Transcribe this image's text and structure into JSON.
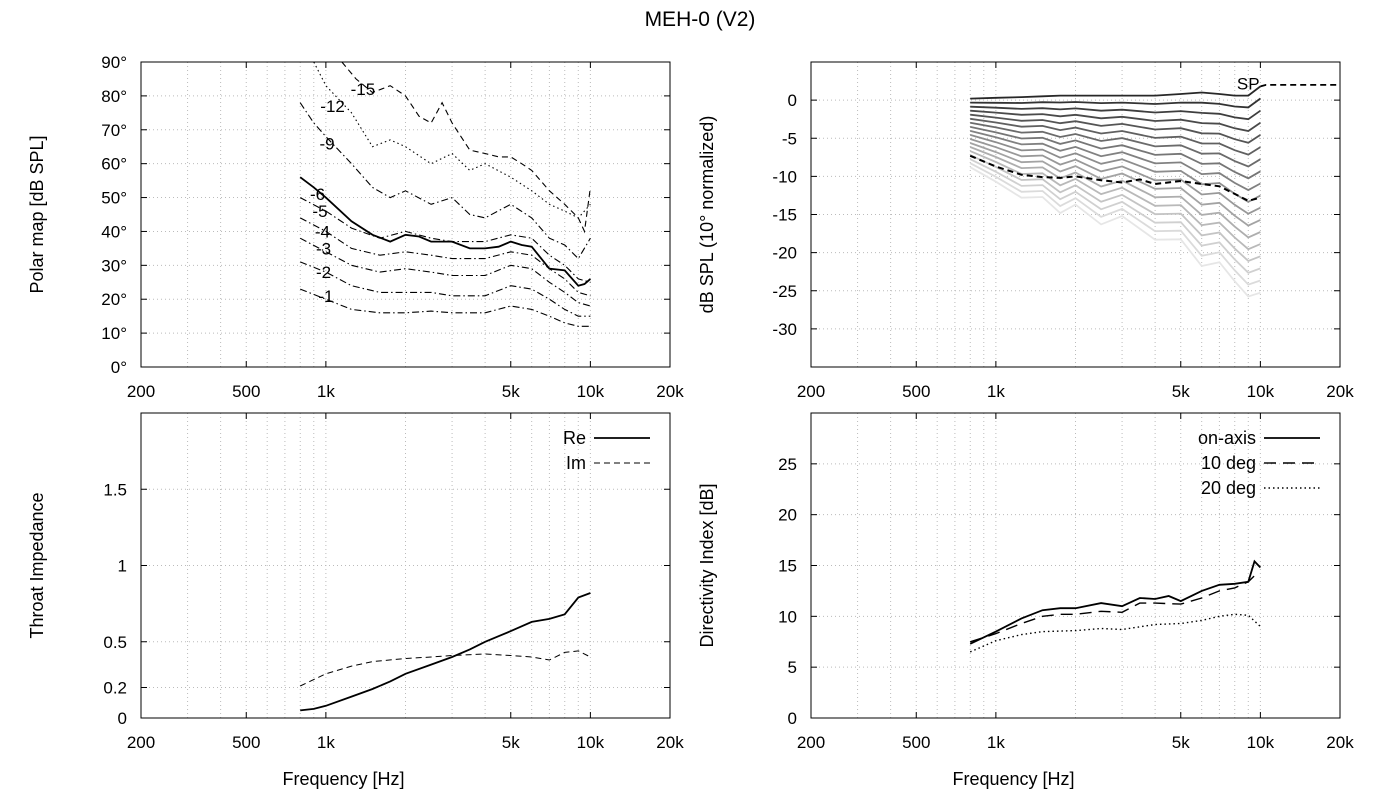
{
  "figure_title": "MEH-0 (V2)",
  "colors": {
    "grid": "#bbbbbb",
    "frame": "#000000",
    "line": "#000000"
  },
  "chart_data": [
    {
      "id": "polar",
      "type": "contour",
      "title": "",
      "xlabel": "",
      "ylabel": "Polar map [dB SPL]",
      "xscale": "log",
      "xlim": [
        200,
        20000
      ],
      "ylim": [
        0,
        90
      ],
      "xticks": [
        {
          "v": 200,
          "label": "200"
        },
        {
          "v": 500,
          "label": "500"
        },
        {
          "v": 1000,
          "label": "1k"
        },
        {
          "v": 5000,
          "label": "5k"
        },
        {
          "v": 10000,
          "label": "10k"
        },
        {
          "v": 20000,
          "label": "20k"
        }
      ],
      "yticks": [
        {
          "v": 0,
          "label": "0°"
        },
        {
          "v": 10,
          "label": "10°"
        },
        {
          "v": 20,
          "label": "20°"
        },
        {
          "v": 30,
          "label": "30°"
        },
        {
          "v": 40,
          "label": "40°"
        },
        {
          "v": 50,
          "label": "50°"
        },
        {
          "v": 60,
          "label": "60°"
        },
        {
          "v": 70,
          "label": "70°"
        },
        {
          "v": 80,
          "label": "80°"
        },
        {
          "v": 90,
          "label": "90°"
        }
      ],
      "grid": true,
      "series": [
        {
          "name": "-1",
          "dash": "dashdot",
          "width": 1.1,
          "label_at": [
            1000,
            21
          ],
          "x": [
            800,
            1000,
            1250,
            1600,
            2000,
            2500,
            3000,
            4000,
            5000,
            6000,
            7000,
            8000,
            9000,
            10000
          ],
          "y": [
            23,
            20,
            17,
            16,
            16,
            16.5,
            16,
            16,
            18,
            17,
            15,
            13,
            12,
            12
          ]
        },
        {
          "name": "-2",
          "dash": "dashdot",
          "width": 1.1,
          "label_at": [
            980,
            28
          ],
          "x": [
            800,
            1000,
            1250,
            1600,
            2000,
            2500,
            3000,
            4000,
            5000,
            6000,
            7000,
            8000,
            9000,
            10000
          ],
          "y": [
            31,
            28,
            24,
            22,
            22,
            22,
            21,
            21,
            24,
            23,
            20,
            17,
            15,
            15
          ]
        },
        {
          "name": "-3",
          "dash": "dashdot",
          "width": 1.1,
          "label_at": [
            980,
            35
          ],
          "x": [
            800,
            1000,
            1250,
            1600,
            2000,
            2500,
            3000,
            4000,
            5000,
            6000,
            7000,
            8000,
            9000,
            10000
          ],
          "y": [
            38,
            34,
            30,
            28,
            29,
            28,
            27,
            27,
            30,
            29,
            25,
            22,
            19,
            18
          ]
        },
        {
          "name": "-4",
          "dash": "dashdot",
          "width": 1.1,
          "label_at": [
            970,
            40
          ],
          "x": [
            800,
            1000,
            1250,
            1600,
            2000,
            2500,
            3000,
            4000,
            5000,
            6000,
            7000,
            8000,
            9000,
            10000
          ],
          "y": [
            44,
            40,
            35,
            33,
            34,
            33,
            32,
            32,
            34,
            33,
            29,
            26,
            22,
            21
          ]
        },
        {
          "name": "-5",
          "dash": "dashdot",
          "width": 1.1,
          "label_at": [
            950,
            46
          ],
          "x": [
            800,
            1000,
            1250,
            1600,
            2000,
            2500,
            3000,
            4000,
            5000,
            6000,
            7000,
            8000,
            9000,
            10000
          ],
          "y": [
            50,
            46,
            41,
            38,
            40,
            38,
            37,
            37,
            39,
            38,
            33,
            30,
            26,
            25
          ]
        },
        {
          "name": "-6",
          "dash": "solid",
          "width": 1.8,
          "label_at": [
            930,
            51
          ],
          "x": [
            800,
            900,
            1000,
            1250,
            1500,
            1750,
            2000,
            2250,
            2500,
            3000,
            3500,
            4000,
            4500,
            5000,
            5500,
            6000,
            7000,
            8000,
            9000,
            9500,
            10000
          ],
          "y": [
            56,
            53,
            50,
            43,
            39,
            37,
            39,
            38.5,
            37,
            37,
            35,
            35,
            35.5,
            37,
            36,
            35.5,
            29,
            28.5,
            24,
            24.5,
            26
          ]
        },
        {
          "name": "-9",
          "dash": "dashdot",
          "width": 1.1,
          "label_at": [
            1010,
            66
          ],
          "x": [
            800,
            900,
            1000,
            1250,
            1500,
            1750,
            2000,
            2500,
            3000,
            3500,
            4000,
            5000,
            6000,
            7000,
            8000,
            9000,
            10000
          ],
          "y": [
            78,
            72,
            68,
            60,
            53,
            50,
            52,
            48,
            50,
            45,
            44,
            48,
            44,
            38,
            36,
            32,
            38
          ]
        },
        {
          "name": "-12",
          "dash": "dotted",
          "width": 1.1,
          "label_at": [
            1060,
            77
          ],
          "x": [
            900,
            1000,
            1250,
            1500,
            1750,
            2000,
            2500,
            3000,
            3500,
            4000,
            5000,
            6000,
            7000,
            8000,
            9000,
            10000
          ],
          "y": [
            90,
            83,
            75,
            65,
            67,
            65,
            60,
            63,
            58,
            60,
            56,
            52,
            48,
            46,
            44,
            48
          ]
        },
        {
          "name": "-15",
          "dash": "dashed",
          "width": 1.1,
          "label_at": [
            1380,
            82
          ],
          "x": [
            1150,
            1300,
            1500,
            1750,
            2000,
            2250,
            2500,
            2750,
            3000,
            3500,
            4000,
            4500,
            5000,
            5500,
            6000,
            7000,
            8000,
            9000,
            9500,
            10000
          ],
          "y": [
            90,
            85,
            81,
            83,
            80,
            74,
            72,
            78,
            72,
            64,
            63,
            62,
            62,
            60,
            58,
            52,
            48,
            44,
            40,
            53
          ]
        }
      ]
    },
    {
      "id": "spl",
      "type": "line",
      "title": "",
      "xlabel": "",
      "ylabel": "dB SPL (10° normalized)",
      "xscale": "log",
      "xlim": [
        200,
        20000
      ],
      "ylim": [
        -35,
        5
      ],
      "xticks": [
        {
          "v": 200,
          "label": "200"
        },
        {
          "v": 500,
          "label": "500"
        },
        {
          "v": 1000,
          "label": "1k"
        },
        {
          "v": 5000,
          "label": "5k"
        },
        {
          "v": 10000,
          "label": "10k"
        },
        {
          "v": 20000,
          "label": "20k"
        }
      ],
      "yticks": [
        {
          "v": 0,
          "label": "0"
        },
        {
          "v": -5,
          "label": "-5"
        },
        {
          "v": -10,
          "label": "-10"
        },
        {
          "v": -15,
          "label": "-15"
        },
        {
          "v": -20,
          "label": "-20"
        },
        {
          "v": -25,
          "label": "-25"
        },
        {
          "v": -30,
          "label": "-30"
        }
      ],
      "grid": true,
      "fan": {
        "x": [
          800,
          1000,
          1250,
          1500,
          1750,
          2000,
          2500,
          3000,
          4000,
          5000,
          6000,
          7000,
          8000,
          9000,
          10000
        ],
        "top": [
          0.2,
          0.3,
          0.4,
          0.5,
          0.6,
          0.6,
          0.6,
          0.6,
          0.6,
          0.8,
          1.0,
          0.8,
          0.6,
          0.6,
          1.8
        ],
        "bottom": [
          -8.5,
          -11,
          -12.5,
          -13,
          -14.5,
          -14,
          -16,
          -15.5,
          -18,
          -19,
          -21,
          -22,
          -23,
          -26.5,
          -24.5
        ],
        "count": 18
      },
      "series": [
        {
          "name": "SP",
          "dash": "dashed",
          "width": 1.8,
          "label_at": [
            9000,
            2.2
          ],
          "x": [
            10000,
            10500,
            12000,
            15000,
            20000
          ],
          "y": [
            1.8,
            2.0,
            2.0,
            2.0,
            2.0
          ]
        },
        {
          "name": "",
          "dash": "dashed",
          "width": 2.0,
          "x": [
            800,
            1000,
            1250,
            1500,
            1750,
            2000,
            2500,
            3000,
            3500,
            4000,
            5000,
            6000,
            7000,
            8000,
            9000,
            10000
          ],
          "y": [
            -7.3,
            -8.7,
            -9.8,
            -10.1,
            -10.2,
            -10.0,
            -10.5,
            -10.8,
            -10.4,
            -11.0,
            -10.6,
            -11.0,
            -11.3,
            -12.3,
            -13.2,
            -12.8
          ]
        }
      ]
    },
    {
      "id": "impedance",
      "type": "line",
      "title": "",
      "xlabel": "Frequency [Hz]",
      "ylabel": "Throat Impedance",
      "xscale": "log",
      "xlim": [
        200,
        20000
      ],
      "ylim": [
        0,
        2
      ],
      "xticks": [
        {
          "v": 200,
          "label": "200"
        },
        {
          "v": 500,
          "label": "500"
        },
        {
          "v": 1000,
          "label": "1k"
        },
        {
          "v": 5000,
          "label": "5k"
        },
        {
          "v": 10000,
          "label": "10k"
        },
        {
          "v": 20000,
          "label": "20k"
        }
      ],
      "yticks": [
        {
          "v": 0,
          "label": "0"
        },
        {
          "v": 0.2,
          "label": "0.2"
        },
        {
          "v": 0.5,
          "label": "0.5"
        },
        {
          "v": 1,
          "label": "1"
        },
        {
          "v": 1.5,
          "label": "1.5"
        }
      ],
      "grid": true,
      "legend": "top-right",
      "series": [
        {
          "name": "Re",
          "dash": "solid",
          "width": 1.8,
          "x": [
            800,
            900,
            1000,
            1250,
            1500,
            1750,
            2000,
            2500,
            3000,
            3500,
            4000,
            5000,
            6000,
            7000,
            8000,
            9000,
            10000
          ],
          "y": [
            0.05,
            0.06,
            0.08,
            0.14,
            0.19,
            0.24,
            0.29,
            0.35,
            0.4,
            0.45,
            0.5,
            0.57,
            0.63,
            0.65,
            0.68,
            0.79,
            0.82
          ]
        },
        {
          "name": "Im",
          "dash": "dashed",
          "width": 1.0,
          "x": [
            800,
            1000,
            1250,
            1500,
            2000,
            2500,
            3000,
            4000,
            5000,
            6000,
            7000,
            8000,
            9000,
            10000
          ],
          "y": [
            0.21,
            0.29,
            0.34,
            0.37,
            0.39,
            0.4,
            0.41,
            0.42,
            0.41,
            0.4,
            0.38,
            0.43,
            0.44,
            0.4
          ]
        }
      ]
    },
    {
      "id": "di",
      "type": "line",
      "title": "",
      "xlabel": "Frequency [Hz]",
      "ylabel": "Directivity Index [dB]",
      "xscale": "log",
      "xlim": [
        200,
        20000
      ],
      "ylim": [
        0,
        30
      ],
      "xticks": [
        {
          "v": 200,
          "label": "200"
        },
        {
          "v": 500,
          "label": "500"
        },
        {
          "v": 1000,
          "label": "1k"
        },
        {
          "v": 5000,
          "label": "5k"
        },
        {
          "v": 10000,
          "label": "10k"
        },
        {
          "v": 20000,
          "label": "20k"
        }
      ],
      "yticks": [
        {
          "v": 0,
          "label": "0"
        },
        {
          "v": 5,
          "label": "5"
        },
        {
          "v": 10,
          "label": "10"
        },
        {
          "v": 15,
          "label": "15"
        },
        {
          "v": 20,
          "label": "20"
        },
        {
          "v": 25,
          "label": "25"
        }
      ],
      "grid": true,
      "legend": "top-right",
      "series": [
        {
          "name": "on-axis",
          "dash": "solid",
          "width": 1.8,
          "x": [
            800,
            1000,
            1250,
            1500,
            1750,
            2000,
            2500,
            3000,
            3500,
            4000,
            4500,
            5000,
            6000,
            7000,
            8000,
            9000,
            9500,
            10000
          ],
          "y": [
            7.3,
            8.5,
            9.8,
            10.6,
            10.8,
            10.8,
            11.3,
            11.0,
            11.8,
            11.7,
            12.0,
            11.5,
            12.5,
            13.1,
            13.2,
            13.4,
            15.4,
            14.8
          ]
        },
        {
          "name": "10 deg",
          "dash": "longdash",
          "width": 1.4,
          "x": [
            800,
            1000,
            1250,
            1500,
            1750,
            2000,
            2500,
            3000,
            3500,
            4000,
            5000,
            6000,
            7000,
            8000,
            9000,
            9500
          ],
          "y": [
            7.5,
            8.3,
            9.3,
            10.0,
            10.2,
            10.2,
            10.5,
            10.4,
            11.3,
            11.3,
            11.2,
            11.8,
            12.5,
            12.8,
            13.4,
            14.0
          ]
        },
        {
          "name": "20 deg",
          "dash": "dotted",
          "width": 1.4,
          "x": [
            800,
            1000,
            1250,
            1500,
            2000,
            2500,
            3000,
            4000,
            5000,
            6000,
            7000,
            8000,
            9000,
            10000
          ],
          "y": [
            6.5,
            7.6,
            8.2,
            8.5,
            8.6,
            8.8,
            8.7,
            9.2,
            9.3,
            9.6,
            10.0,
            10.2,
            10.1,
            9.0
          ]
        }
      ]
    }
  ]
}
